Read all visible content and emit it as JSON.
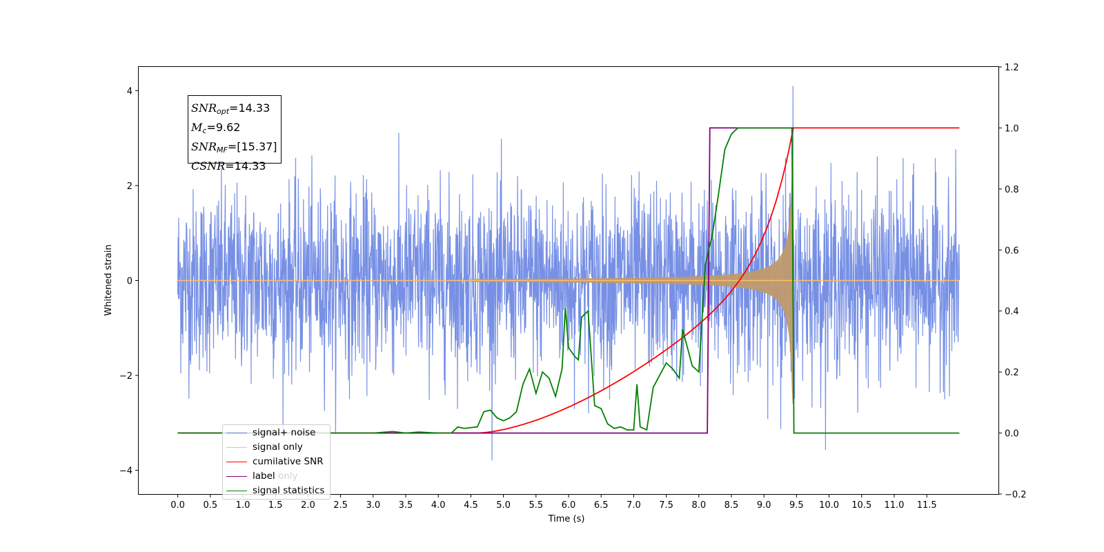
{
  "chart_data": {
    "type": "line",
    "xlabel": "Time (s)",
    "ylabel_left": "Whitened strain",
    "ylabel_right": "",
    "xlim": [
      -0.6,
      12.6
    ],
    "ylim_left": [
      -4.5,
      4.5
    ],
    "ylim_right": [
      -0.2,
      1.2
    ],
    "x_ticks": [
      "0.0",
      "0.5",
      "1.0",
      "1.5",
      "2.0",
      "2.5",
      "3.0",
      "3.5",
      "4.0",
      "4.5",
      "5.0",
      "5.5",
      "6.0",
      "6.5",
      "7.0",
      "7.5",
      "8.0",
      "8.5",
      "9.0",
      "9.5",
      "10.0",
      "10.5",
      "11.0",
      "11.5"
    ],
    "y_ticks_left": [
      "−4",
      "−2",
      "0",
      "2",
      "4"
    ],
    "y_ticks_right": [
      "−0.2",
      "0.0",
      "0.2",
      "0.4",
      "0.6",
      "0.8",
      "1.0",
      "1.2"
    ],
    "annotation": {
      "snr_opt": "=14.33",
      "mc": "=9.62",
      "snr_mf": "=[15.37]",
      "csnr": "=14.33"
    },
    "series": [
      {
        "name": "signal+ noise",
        "color": "#6b87e3",
        "axis": "left",
        "kind": "gaussian noise, std ~1.0, amplitude peaks ~±4 over 0-12 s"
      },
      {
        "name": "signal only",
        "color": "#ffbf6b",
        "axis": "left",
        "kind": "chirp, amplitude growing from ~0 at 5 s to ~±2.6 at 9.45 s, 0 afterwards"
      },
      {
        "name": "cumilative SNR",
        "color": "#ff0000",
        "axis": "right",
        "x": [
          0.0,
          4.5,
          5.0,
          5.5,
          6.0,
          6.5,
          7.0,
          7.5,
          8.0,
          8.5,
          9.0,
          9.2,
          9.3,
          9.4,
          9.45,
          12.0
        ],
        "y": [
          0.0,
          0.0,
          0.003,
          0.02,
          0.07,
          0.14,
          0.2,
          0.27,
          0.36,
          0.46,
          0.6,
          0.7,
          0.8,
          0.92,
          1.0,
          1.0
        ]
      },
      {
        "name": "label",
        "color": "#800080",
        "axis": "right",
        "x": [
          0.0,
          8.13,
          8.17,
          9.43,
          9.45,
          9.46
        ],
        "y": [
          0.0,
          0.0,
          1.0,
          1.0,
          1.0,
          1.0
        ]
      },
      {
        "name": "signal statistics",
        "color": "#008000",
        "axis": "right",
        "x": [
          0.0,
          3.0,
          3.3,
          3.5,
          3.7,
          4.0,
          4.2,
          4.3,
          4.4,
          4.6,
          4.7,
          4.8,
          4.9,
          5.0,
          5.1,
          5.2,
          5.3,
          5.4,
          5.5,
          5.6,
          5.7,
          5.8,
          5.9,
          5.95,
          6.0,
          6.1,
          6.15,
          6.2,
          6.3,
          6.4,
          6.5,
          6.6,
          6.7,
          6.8,
          6.9,
          7.0,
          7.05,
          7.1,
          7.2,
          7.3,
          7.4,
          7.5,
          7.6,
          7.7,
          7.75,
          7.8,
          7.9,
          8.0,
          8.1,
          8.15,
          8.2,
          8.3,
          8.4,
          8.5,
          8.6,
          8.8,
          9.0,
          9.3,
          9.43,
          9.46,
          9.48,
          12.0
        ],
        "y": [
          0.0,
          0.0,
          0.005,
          0.0,
          0.003,
          0.0,
          0.0,
          0.02,
          0.015,
          0.02,
          0.07,
          0.075,
          0.05,
          0.04,
          0.05,
          0.07,
          0.16,
          0.21,
          0.13,
          0.2,
          0.18,
          0.12,
          0.21,
          0.41,
          0.28,
          0.25,
          0.24,
          0.38,
          0.4,
          0.09,
          0.08,
          0.03,
          0.015,
          0.02,
          0.01,
          0.01,
          0.16,
          0.02,
          0.01,
          0.15,
          0.19,
          0.23,
          0.21,
          0.18,
          0.34,
          0.3,
          0.22,
          0.2,
          0.55,
          0.6,
          0.64,
          0.78,
          0.93,
          0.98,
          1.0,
          1.0,
          1.0,
          1.0,
          1.0,
          0.0,
          0.0,
          0.0
        ]
      }
    ],
    "legend_entries": [
      "signal+ noise",
      "signal only",
      "cumilative SNR",
      "label",
      "signal statistics"
    ],
    "legend_placement": "lower-left",
    "hidden_legend_text": "label only"
  }
}
